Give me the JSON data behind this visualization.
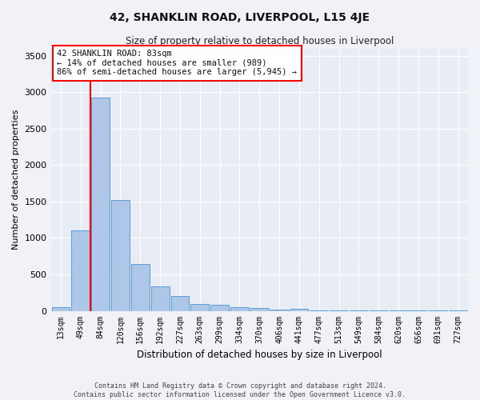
{
  "title": "42, SHANKLIN ROAD, LIVERPOOL, L15 4JE",
  "subtitle": "Size of property relative to detached houses in Liverpool",
  "xlabel": "Distribution of detached houses by size in Liverpool",
  "ylabel": "Number of detached properties",
  "bar_color": "#aec6e8",
  "bar_edge_color": "#5b9bd5",
  "bg_color": "#e8edf5",
  "grid_color": "#ffffff",
  "fig_color": "#f0f2f8",
  "categories": [
    "13sqm",
    "49sqm",
    "84sqm",
    "120sqm",
    "156sqm",
    "192sqm",
    "227sqm",
    "263sqm",
    "299sqm",
    "334sqm",
    "370sqm",
    "406sqm",
    "441sqm",
    "477sqm",
    "513sqm",
    "549sqm",
    "584sqm",
    "620sqm",
    "656sqm",
    "691sqm",
    "727sqm"
  ],
  "values": [
    50,
    1100,
    2930,
    1520,
    640,
    330,
    205,
    95,
    80,
    55,
    35,
    20,
    30,
    5,
    5,
    5,
    3,
    3,
    2,
    2,
    2
  ],
  "property_label": "42 SHANKLIN ROAD: 83sqm",
  "pct_smaller": 14,
  "n_smaller": 989,
  "pct_larger_semi": 86,
  "n_larger_semi": "5,945",
  "vline_x_index": 2,
  "ylim": [
    0,
    3600
  ],
  "yticks": [
    0,
    500,
    1000,
    1500,
    2000,
    2500,
    3000,
    3500
  ],
  "footer_line1": "Contains HM Land Registry data © Crown copyright and database right 2024.",
  "footer_line2": "Contains public sector information licensed under the Open Government Licence v3.0."
}
